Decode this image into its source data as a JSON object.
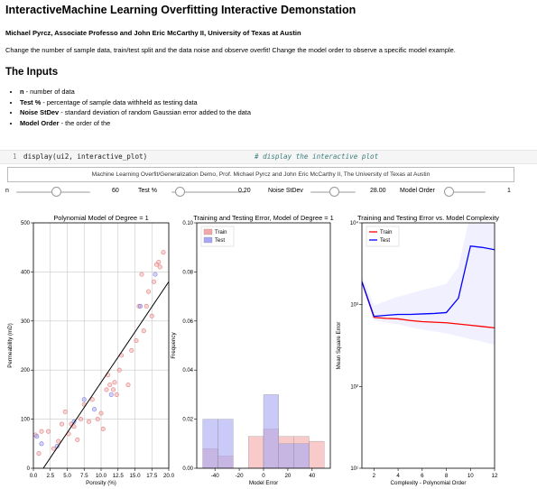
{
  "header": {
    "title": "InteractiveMachine Learning Overfitting Interactive Demonstation",
    "authors": "Michael Pyrcz, Associate Professo and John Eric McCarthy II, University of Texas at Austin",
    "intro": "Change the number of sample data, train/test split and the data noise and observe overfit! Change the model order to observe a specific model example."
  },
  "inputs": {
    "heading": "The Inputs",
    "items": [
      {
        "name": "n",
        "desc": " - number of data"
      },
      {
        "name": "Test %",
        "desc": " - percentage of sample data withheld as testing data"
      },
      {
        "name": "Noise StDev",
        "desc": " - standard deviation of random Gaussian error added to the data"
      },
      {
        "name": "Model Order",
        "desc": " - the order of the"
      }
    ]
  },
  "code_cell": {
    "line_number": "1",
    "code": "display(ui2, interactive_plot)",
    "comment": "# display the interactive plot"
  },
  "banner": "Machine Learning Overfit/Generalization Demo, Prof. Michael Pyrcz and John Eric McCarthy II, The University of Texas at Austin",
  "sliders": [
    {
      "label": "n",
      "value": "60",
      "level": 0.55
    },
    {
      "label": "Test %",
      "value": "0.20",
      "level": 0.05
    },
    {
      "label": "Noise StDev",
      "value": "28.00",
      "level": 0.55
    },
    {
      "label": "Model Order",
      "value": "1",
      "level": 0.0
    }
  ],
  "chart_data": [
    {
      "type": "scatter",
      "title": "Polynomial Model of Degree = 1",
      "xlabel": "Porosity (%)",
      "ylabel": "Permeability (mD)",
      "xlim": [
        0,
        20
      ],
      "ylim": [
        0,
        500
      ],
      "xticks": [
        "0.0",
        "2.5",
        "5.0",
        "7.5",
        "10.0",
        "12.5",
        "15.0",
        "17.5",
        "20.0"
      ],
      "yticks": [
        "0",
        "100",
        "200",
        "300",
        "400",
        "500"
      ],
      "grid": true,
      "series": [
        {
          "color": "#e88a8a",
          "points": [
            [
              0.3,
              68
            ],
            [
              0.8,
              30
            ],
            [
              1.2,
              75
            ],
            [
              2.2,
              75
            ],
            [
              3.0,
              40
            ],
            [
              3.7,
              55
            ],
            [
              4.2,
              90
            ],
            [
              4.7,
              115
            ],
            [
              5.2,
              70
            ],
            [
              5.6,
              90
            ],
            [
              6.0,
              85
            ],
            [
              6.5,
              58
            ],
            [
              7.0,
              100
            ],
            [
              7.5,
              130
            ],
            [
              8.2,
              95
            ],
            [
              8.7,
              140
            ],
            [
              9.5,
              100
            ],
            [
              10.0,
              112
            ],
            [
              10.3,
              80
            ],
            [
              10.8,
              160
            ],
            [
              11.0,
              190
            ],
            [
              11.3,
              170
            ],
            [
              11.8,
              160
            ],
            [
              12.0,
              175
            ],
            [
              12.3,
              150
            ],
            [
              12.7,
              200
            ],
            [
              13.0,
              230
            ],
            [
              14.0,
              170
            ],
            [
              14.5,
              240
            ],
            [
              15.2,
              260
            ],
            [
              15.6,
              330
            ],
            [
              16.0,
              395
            ],
            [
              16.3,
              280
            ],
            [
              16.7,
              330
            ],
            [
              17.0,
              360
            ],
            [
              17.5,
              310
            ],
            [
              17.8,
              380
            ],
            [
              18.2,
              415
            ],
            [
              18.5,
              420
            ],
            [
              18.7,
              410
            ],
            [
              19.2,
              440
            ]
          ]
        },
        {
          "color": "#8a8ae8",
          "points": [
            [
              0.5,
              65
            ],
            [
              1.2,
              50
            ],
            [
              3.5,
              45
            ],
            [
              6.0,
              95
            ],
            [
              7.5,
              140
            ],
            [
              9.0,
              120
            ],
            [
              11.5,
              150
            ],
            [
              15.8,
              330
            ],
            [
              18.0,
              395
            ]
          ]
        }
      ],
      "model_line": {
        "color": "#000000",
        "x": [
          0,
          20
        ],
        "y": [
          -30,
          380
        ]
      }
    },
    {
      "type": "bar",
      "title": "Training and Testing Error, Model of Degree = 1",
      "xlabel": "Model Error",
      "ylabel": "Frequency",
      "xlim": [
        -55,
        55
      ],
      "ylim": [
        0,
        0.1
      ],
      "xticks": [
        "-40",
        "-20",
        "0",
        "20",
        "40"
      ],
      "yticks": [
        "0.00",
        "0.02",
        "0.04",
        "0.06",
        "0.08",
        "0.10"
      ],
      "legend": "top-left",
      "series": [
        {
          "name": "Train",
          "color": "#f4a7a7",
          "bins": [
            [
              -50,
              -37.5,
              0.008
            ],
            [
              -37.5,
              -25,
              0.005
            ],
            [
              -12.5,
              0,
              0.013
            ],
            [
              0,
              12.5,
              0.016
            ],
            [
              12.5,
              25,
              0.013
            ],
            [
              25,
              37.5,
              0.013
            ],
            [
              37.5,
              50,
              0.011
            ]
          ]
        },
        {
          "name": "Test",
          "color": "#a7a7f4",
          "bins": [
            [
              -50,
              -37.5,
              0.02
            ],
            [
              -37.5,
              -25,
              0.02
            ],
            [
              -12.5,
              0,
              0.0
            ],
            [
              0,
              12.5,
              0.03
            ],
            [
              12.5,
              25,
              0.01
            ],
            [
              25,
              37.5,
              0.01
            ]
          ]
        }
      ]
    },
    {
      "type": "line",
      "title": "Training and Testing Error vs. Model Complexity",
      "xlabel": "Complexity - Polynomial Order",
      "ylabel": "Mean Square Error",
      "xlim": [
        1,
        12
      ],
      "ylim": [
        10,
        10000
      ],
      "yscale": "log",
      "xticks": [
        "2",
        "4",
        "6",
        "8",
        "10",
        "12"
      ],
      "yticks": [
        "10¹",
        "10²",
        "10³",
        "10⁴"
      ],
      "legend": "top-left",
      "series": [
        {
          "name": "Train",
          "color": "#ff0000",
          "x": [
            1,
            2,
            3,
            4,
            5,
            6,
            7,
            8,
            9,
            10,
            11,
            12
          ],
          "y": [
            1900,
            700,
            680,
            670,
            640,
            620,
            610,
            600,
            580,
            560,
            540,
            520
          ]
        },
        {
          "name": "Test",
          "color": "#0000ff",
          "x": [
            1,
            2,
            3,
            4,
            5,
            6,
            7,
            8,
            9,
            10,
            11,
            12
          ],
          "y": [
            1900,
            720,
            740,
            760,
            760,
            770,
            780,
            800,
            1200,
            5200,
            5000,
            4700
          ]
        }
      ]
    }
  ]
}
